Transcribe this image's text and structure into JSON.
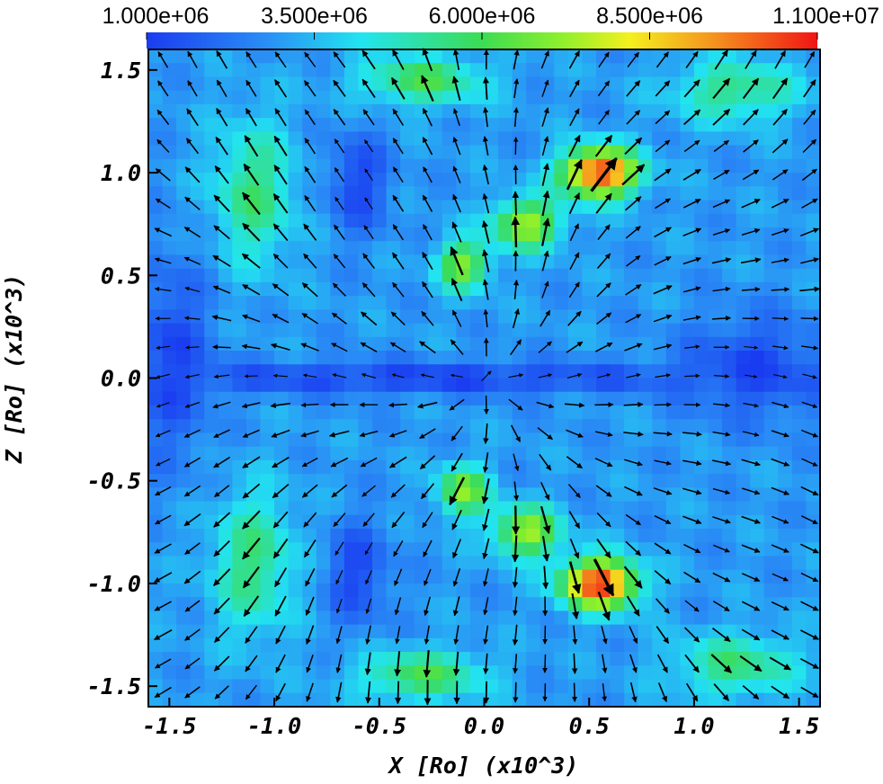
{
  "chart_data": {
    "type": "heatmap",
    "title": "",
    "xlabel": "X [Ro] (x10^3)",
    "ylabel": "Z [Ro] (x10^3)",
    "xlim": [
      -1.6,
      1.6
    ],
    "ylim": [
      -1.6,
      1.6
    ],
    "x_ticks": [
      -1.5,
      -1.0,
      -0.5,
      0.0,
      0.5,
      1.0,
      1.5
    ],
    "x_tick_labels": [
      "-1.5",
      "-1.0",
      "-0.5",
      "0.0",
      "0.5",
      "1.0",
      "1.5"
    ],
    "y_ticks": [
      -1.5,
      -1.0,
      -0.5,
      0.0,
      0.5,
      1.0,
      1.5
    ],
    "y_tick_labels": [
      "-1.5",
      "-1.0",
      "-0.5",
      "0.0",
      "0.5",
      "1.0",
      "1.5"
    ],
    "colorbar": {
      "position": "top",
      "range": [
        1000000,
        11000000
      ],
      "ticks": [
        1000000,
        3500000,
        6000000,
        8500000,
        11000000
      ],
      "tick_labels": [
        "1.000e+06",
        "3.500e+06",
        "6.000e+06",
        "8.500e+06",
        "1.100e+07"
      ],
      "colormap": "rainbow (blue-cyan-green-yellow-red)"
    },
    "field_features": [
      {
        "x": 0.55,
        "z": 1.0,
        "value": 10800000,
        "sx": 0.18,
        "sz": 0.12
      },
      {
        "x": 0.55,
        "z": -1.0,
        "value": 10800000,
        "sx": 0.18,
        "sz": 0.12
      },
      {
        "x": 0.2,
        "z": 0.75,
        "value": 7500000,
        "sx": 0.16,
        "sz": 0.12
      },
      {
        "x": -0.1,
        "z": 0.55,
        "value": 7000000,
        "sx": 0.12,
        "sz": 0.12
      },
      {
        "x": 0.2,
        "z": -0.75,
        "value": 7500000,
        "sx": 0.16,
        "sz": 0.12
      },
      {
        "x": -0.1,
        "z": -0.55,
        "value": 7000000,
        "sx": 0.12,
        "sz": 0.12
      },
      {
        "x": -0.3,
        "z": 1.45,
        "value": 6000000,
        "sx": 0.3,
        "sz": 0.12
      },
      {
        "x": -0.3,
        "z": -1.45,
        "value": 6000000,
        "sx": 0.3,
        "sz": 0.12
      },
      {
        "x": -1.1,
        "z": 0.9,
        "value": 5500000,
        "sx": 0.2,
        "sz": 0.35
      },
      {
        "x": -1.1,
        "z": -0.9,
        "value": 5500000,
        "sx": 0.2,
        "sz": 0.35
      },
      {
        "x": 1.2,
        "z": 1.4,
        "value": 5500000,
        "sx": 0.3,
        "sz": 0.15
      },
      {
        "x": 1.2,
        "z": -1.4,
        "value": 5500000,
        "sx": 0.3,
        "sz": 0.15
      }
    ],
    "field_background": 3000000,
    "field_low_regions": [
      {
        "x": -0.3,
        "z": 0.0,
        "value": 1200000,
        "sx": 1.6,
        "sz": 0.08
      },
      {
        "x": 1.3,
        "z": 0.05,
        "value": 1300000,
        "sx": 0.35,
        "sz": 0.25
      },
      {
        "x": -1.5,
        "z": 0.1,
        "value": 1300000,
        "sx": 0.2,
        "sz": 0.5
      },
      {
        "x": -0.6,
        "z": 0.95,
        "value": 1300000,
        "sx": 0.15,
        "sz": 0.25
      },
      {
        "x": -0.6,
        "z": -0.95,
        "value": 1300000,
        "sx": 0.15,
        "sz": 0.25
      }
    ],
    "vector_field": {
      "description": "velocity arrows pointing outward from origin, largest near the two red lobes",
      "grid_spacing": 0.14
    }
  }
}
